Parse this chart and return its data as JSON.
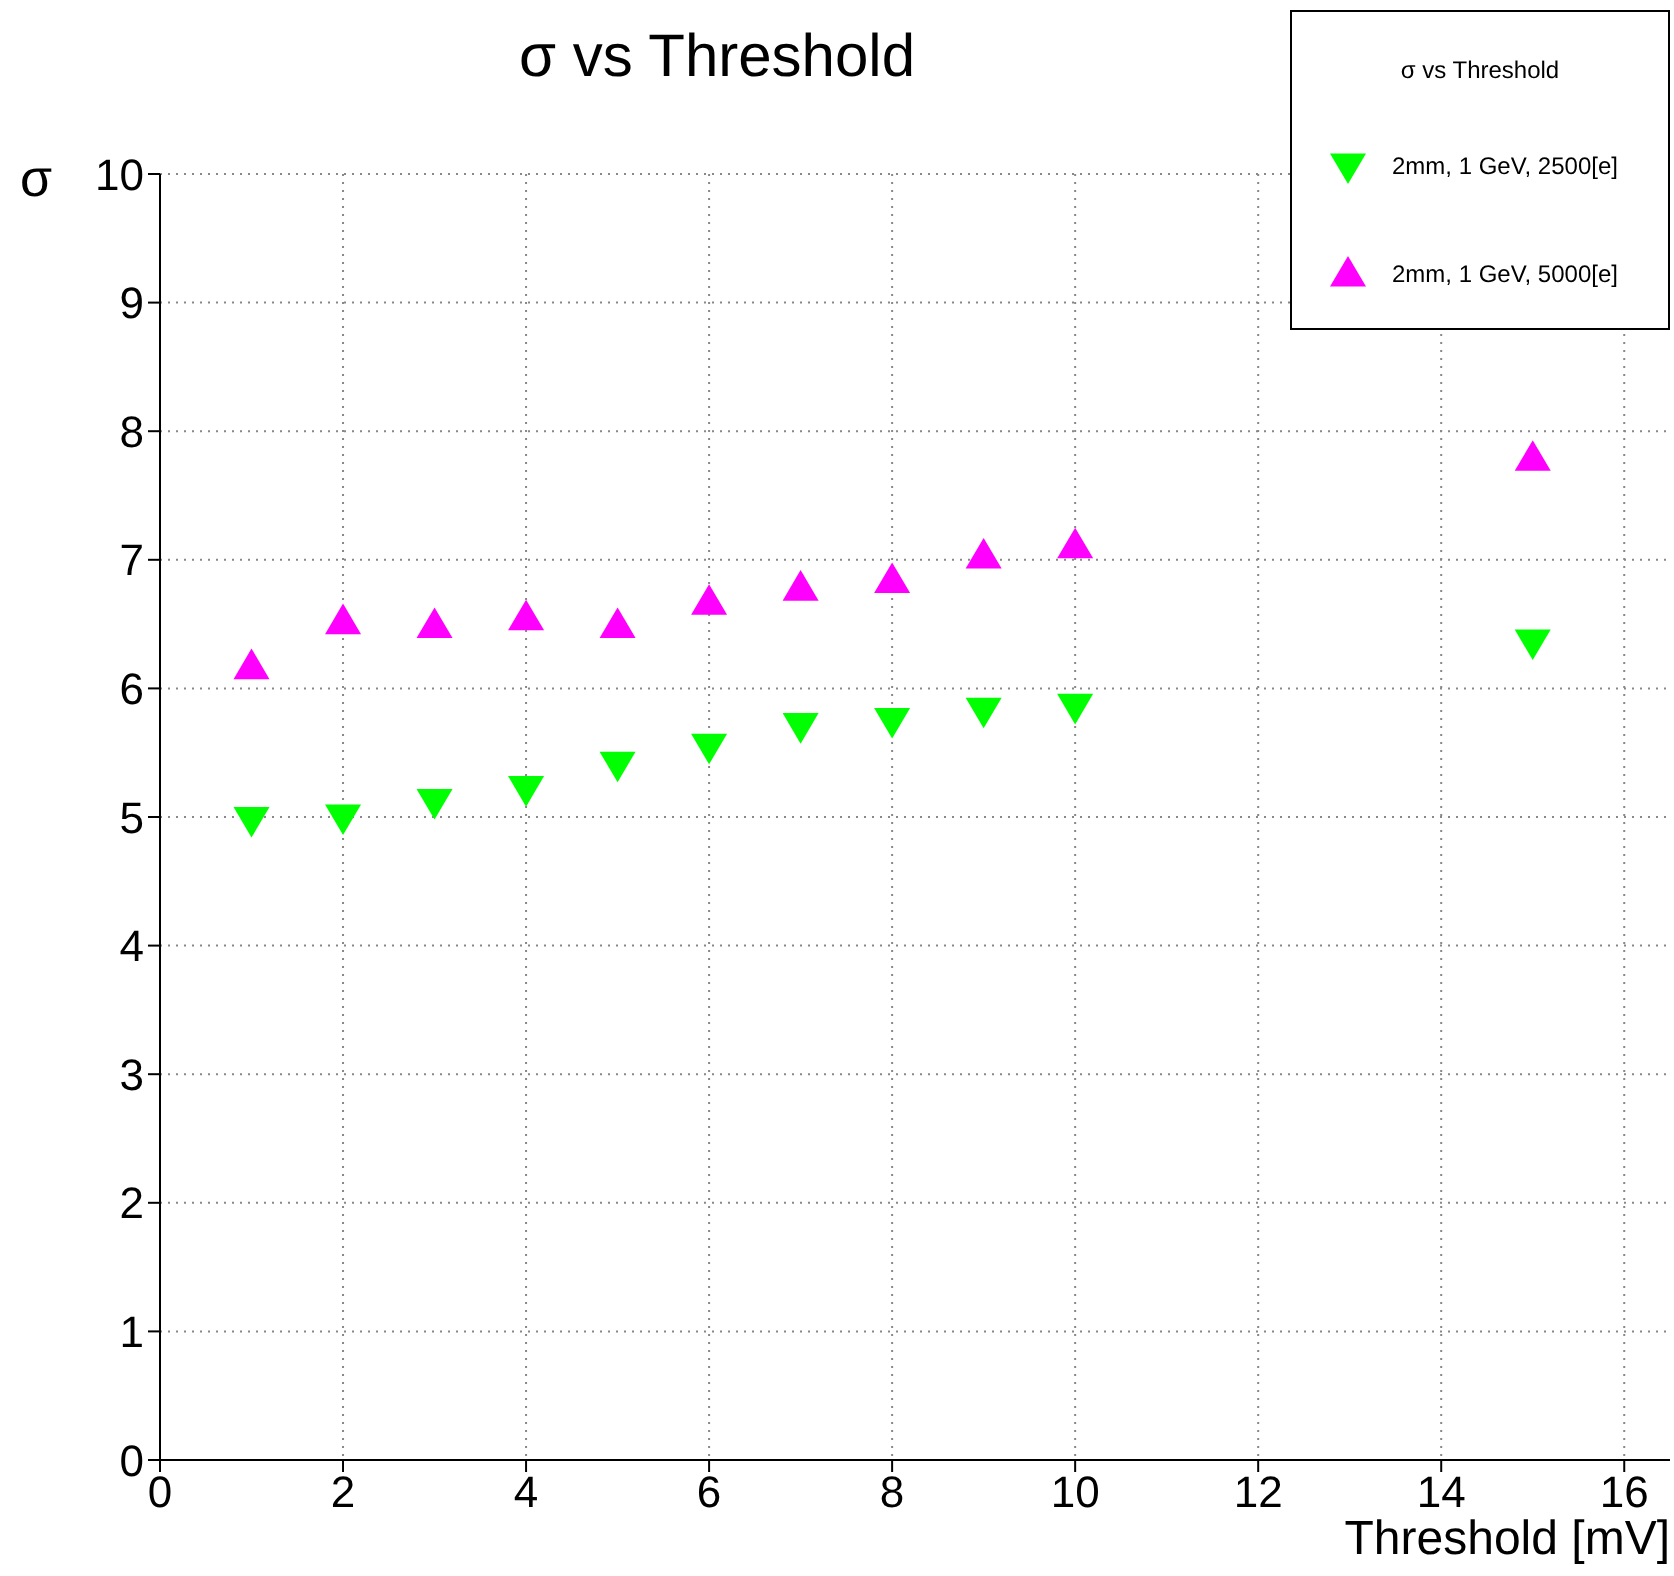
{
  "chart_data": {
    "type": "scatter",
    "title": "σ vs Threshold",
    "xlabel": "Threshold [mV]",
    "ylabel": "σ",
    "legend_title": "σ vs Threshold",
    "x": [
      1,
      2,
      3,
      4,
      5,
      6,
      7,
      8,
      9,
      10,
      15
    ],
    "series": [
      {
        "name": "2mm, 1 GeV, 2500[e]",
        "color": "#00ff00",
        "marker": "triangle-down",
        "values": [
          4.98,
          5.0,
          5.12,
          5.22,
          5.41,
          5.55,
          5.71,
          5.75,
          5.83,
          5.86,
          6.36
        ]
      },
      {
        "name": "2mm, 1 GeV, 5000[e]",
        "color": "#ff00ff",
        "marker": "triangle",
        "values": [
          6.17,
          6.52,
          6.49,
          6.55,
          6.49,
          6.67,
          6.78,
          6.84,
          7.03,
          7.11,
          7.79
        ]
      }
    ],
    "xlim": [
      0,
      16.5
    ],
    "xticks": [
      0,
      2,
      4,
      6,
      8,
      10,
      12,
      14,
      16
    ],
    "ylim": [
      0,
      10
    ],
    "yticks": [
      0,
      1,
      2,
      3,
      4,
      5,
      6,
      7,
      8,
      9,
      10
    ],
    "grid": true,
    "legend": "top right"
  }
}
